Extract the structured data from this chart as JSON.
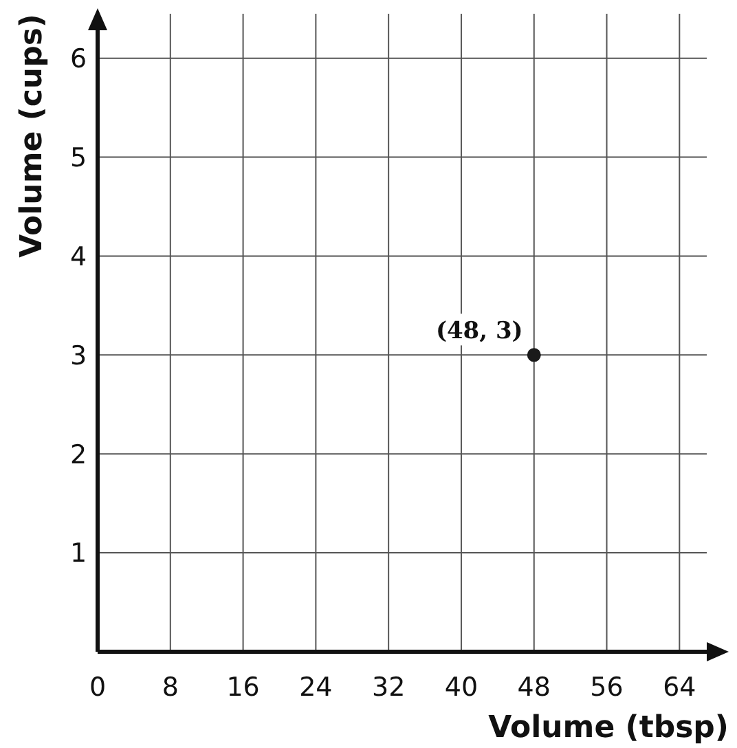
{
  "chart_data": {
    "type": "scatter",
    "xlabel": "Volume (tbsp)",
    "ylabel": "Volume (cups)",
    "x": [
      48
    ],
    "values": [
      3
    ],
    "color": "#1a1a1a",
    "marker": "circle",
    "xlim": [
      0,
      67
    ],
    "ylim": [
      0,
      6.45
    ],
    "xticks": [
      0,
      8,
      16,
      24,
      32,
      40,
      48,
      56,
      64
    ],
    "yticks": [
      1,
      2,
      3,
      4,
      5,
      6
    ],
    "grid": true,
    "annotations": [
      {
        "text": "(48, 3)",
        "x": 48,
        "y": 3
      }
    ]
  }
}
